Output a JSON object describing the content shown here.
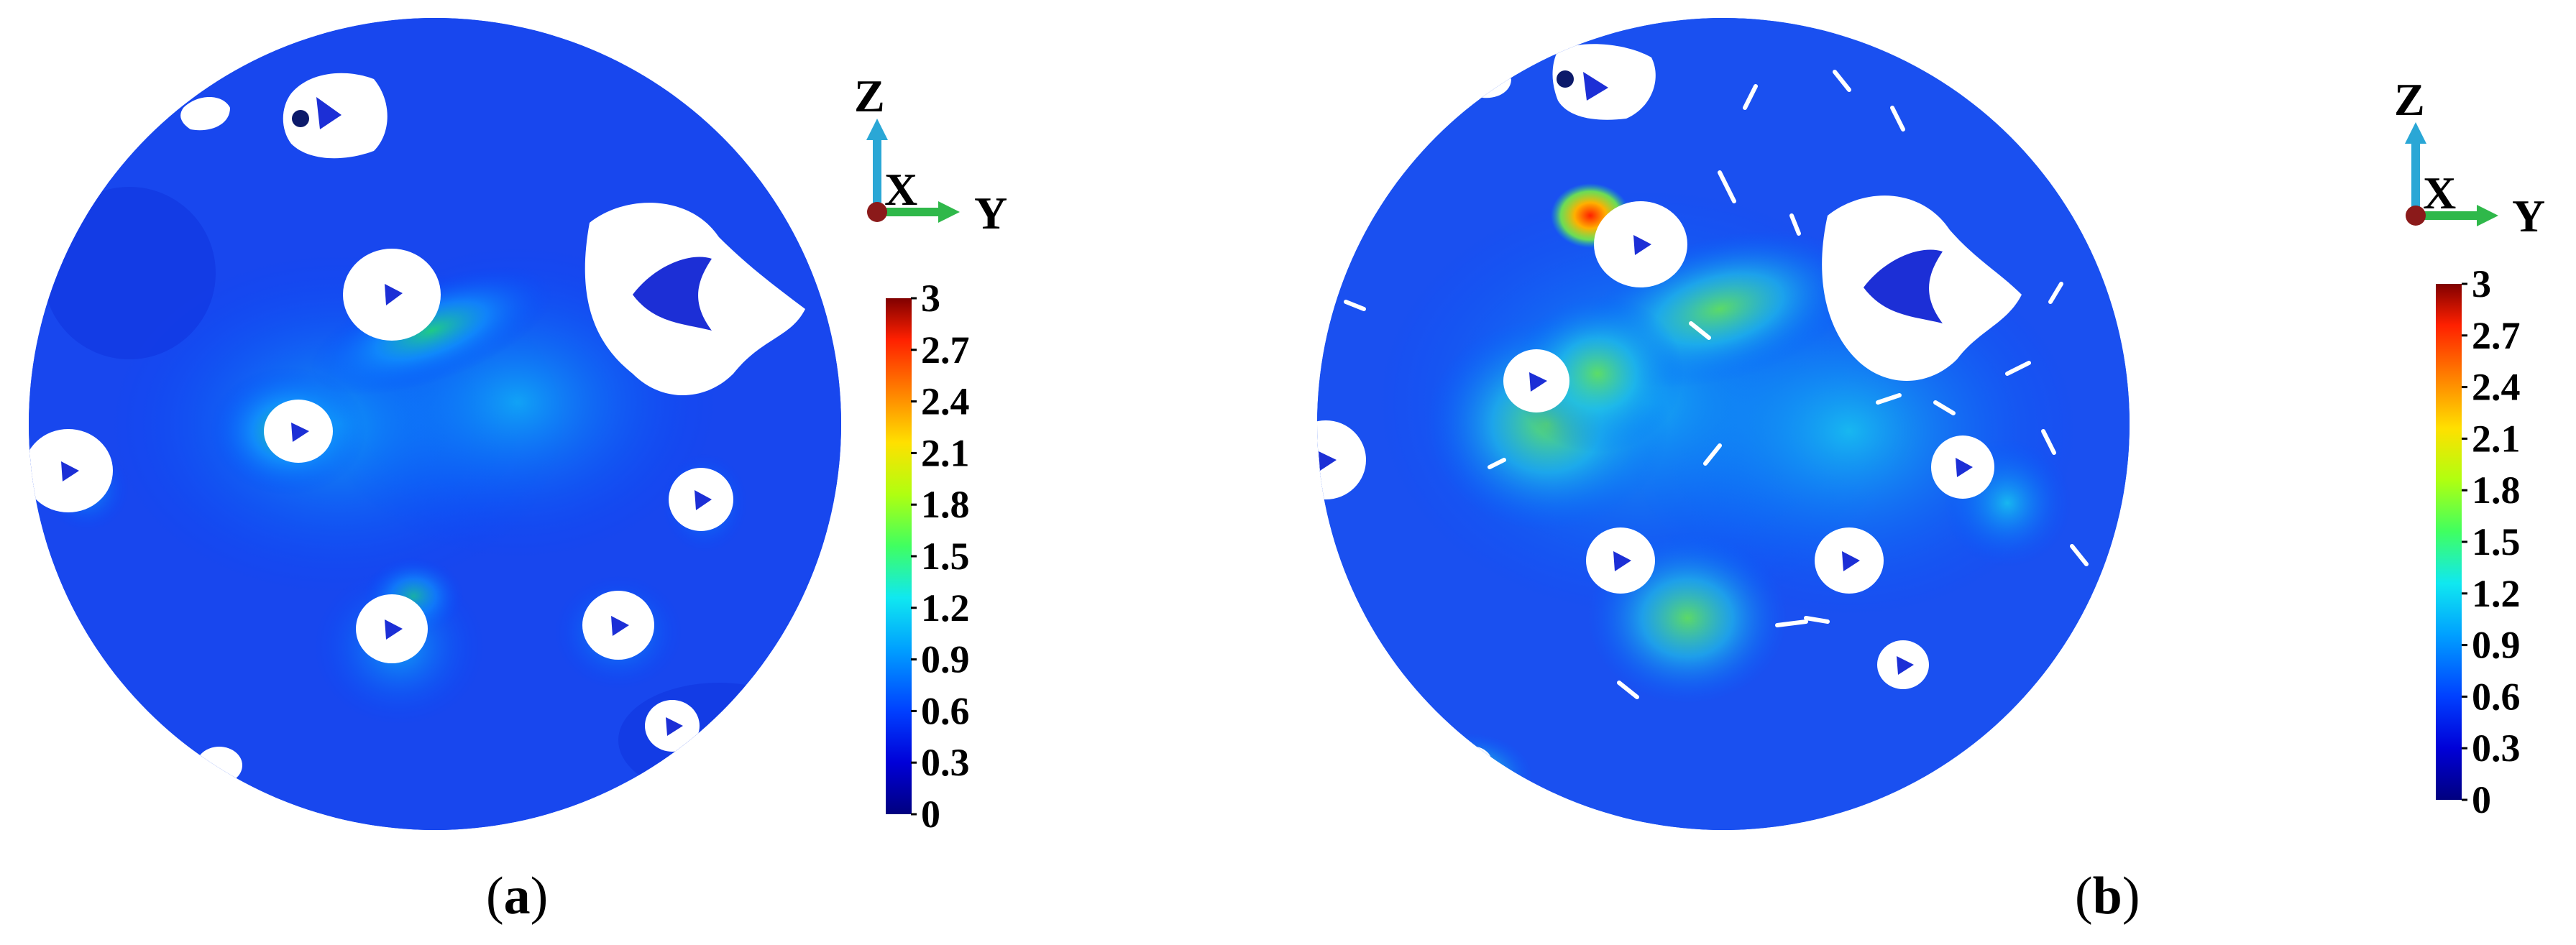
{
  "panels": [
    {
      "id": "a",
      "caption_open": "(",
      "caption_letter": "a",
      "caption_close": ")",
      "axes": {
        "z": "Z",
        "x": "X",
        "y": "Y"
      },
      "colorbar": {
        "ticks": [
          "3",
          "2.7",
          "2.4",
          "2.1",
          "1.8",
          "1.5",
          "1.2",
          "0.9",
          "0.6",
          "0.3",
          "0"
        ],
        "min": 0,
        "max": 3
      },
      "noisy": false
    },
    {
      "id": "b",
      "caption_open": "(",
      "caption_letter": "b",
      "caption_close": ")",
      "axes": {
        "z": "Z",
        "x": "X",
        "y": "Y"
      },
      "colorbar": {
        "ticks": [
          "3",
          "2.7",
          "2.4",
          "2.1",
          "1.8",
          "1.5",
          "1.2",
          "0.9",
          "0.6",
          "0.3",
          "0"
        ],
        "min": 0,
        "max": 3
      },
      "noisy": true
    }
  ],
  "colors": {
    "colormap": [
      "#00007f",
      "#0000d8",
      "#0040ff",
      "#00a0ff",
      "#10e8f0",
      "#40ff60",
      "#b0ff10",
      "#ffe000",
      "#ff8000",
      "#ff2000",
      "#800000"
    ],
    "background": "#ffffff",
    "axis_z": "#2aa7d6",
    "axis_y": "#2fb84a",
    "axis_x_dot": "#8b1a1a"
  }
}
